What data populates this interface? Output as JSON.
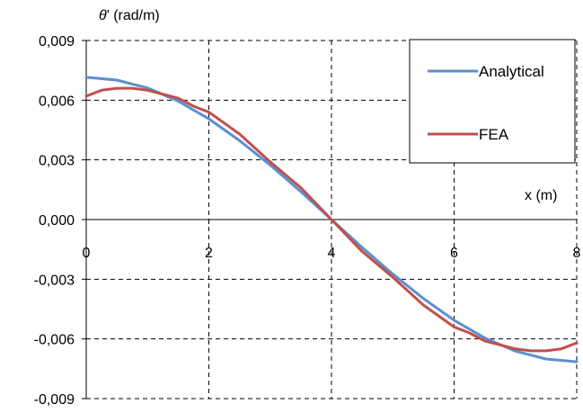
{
  "chart_data": {
    "type": "line",
    "ylabel_symbol": "θ",
    "ylabel_unit": "' (rad/m)",
    "xlabel": "x (m)",
    "xlim": [
      0,
      8
    ],
    "ylim": [
      -0.009,
      0.009
    ],
    "x_ticks": [
      0,
      2,
      4,
      6,
      8
    ],
    "x_tick_labels": [
      "0",
      "2",
      "4",
      "6",
      "8"
    ],
    "y_ticks": [
      0.009,
      0.006,
      0.003,
      0.0,
      -0.003,
      -0.006,
      -0.009
    ],
    "y_tick_labels": [
      "0,009",
      "0,006",
      "0,003",
      "0,000",
      "-0,003",
      "-0,006",
      "-0,009"
    ],
    "grid": "dashed",
    "legend_position": "top-right",
    "series": [
      {
        "name": "Analytical",
        "color": "#5b8fcf",
        "x": [
          0,
          0.5,
          1,
          1.5,
          2,
          2.5,
          3,
          3.5,
          4,
          4.5,
          5,
          5.5,
          6,
          6.5,
          7,
          7.5,
          8
        ],
        "y": [
          0.00715,
          0.00701,
          0.00661,
          0.00595,
          0.00506,
          0.00397,
          0.00274,
          0.0014,
          0.0,
          -0.0014,
          -0.00274,
          -0.00397,
          -0.00506,
          -0.00595,
          -0.00661,
          -0.00701,
          -0.00715
        ]
      },
      {
        "name": "FEA",
        "color": "#c0504d",
        "x": [
          0,
          0.25,
          0.5,
          0.75,
          1,
          1.25,
          1.5,
          1.75,
          2,
          2.5,
          3,
          3.5,
          4,
          4.5,
          5,
          5.5,
          6,
          6.25,
          6.5,
          6.75,
          7,
          7.25,
          7.5,
          7.75,
          8
        ],
        "y": [
          0.0062,
          0.0065,
          0.0066,
          0.0066,
          0.0065,
          0.0063,
          0.0061,
          0.0057,
          0.0054,
          0.0043,
          0.0029,
          0.0016,
          0.0,
          -0.0016,
          -0.0029,
          -0.0043,
          -0.0054,
          -0.0057,
          -0.0061,
          -0.0063,
          -0.0065,
          -0.0066,
          -0.0066,
          -0.0065,
          -0.0062
        ]
      }
    ]
  }
}
